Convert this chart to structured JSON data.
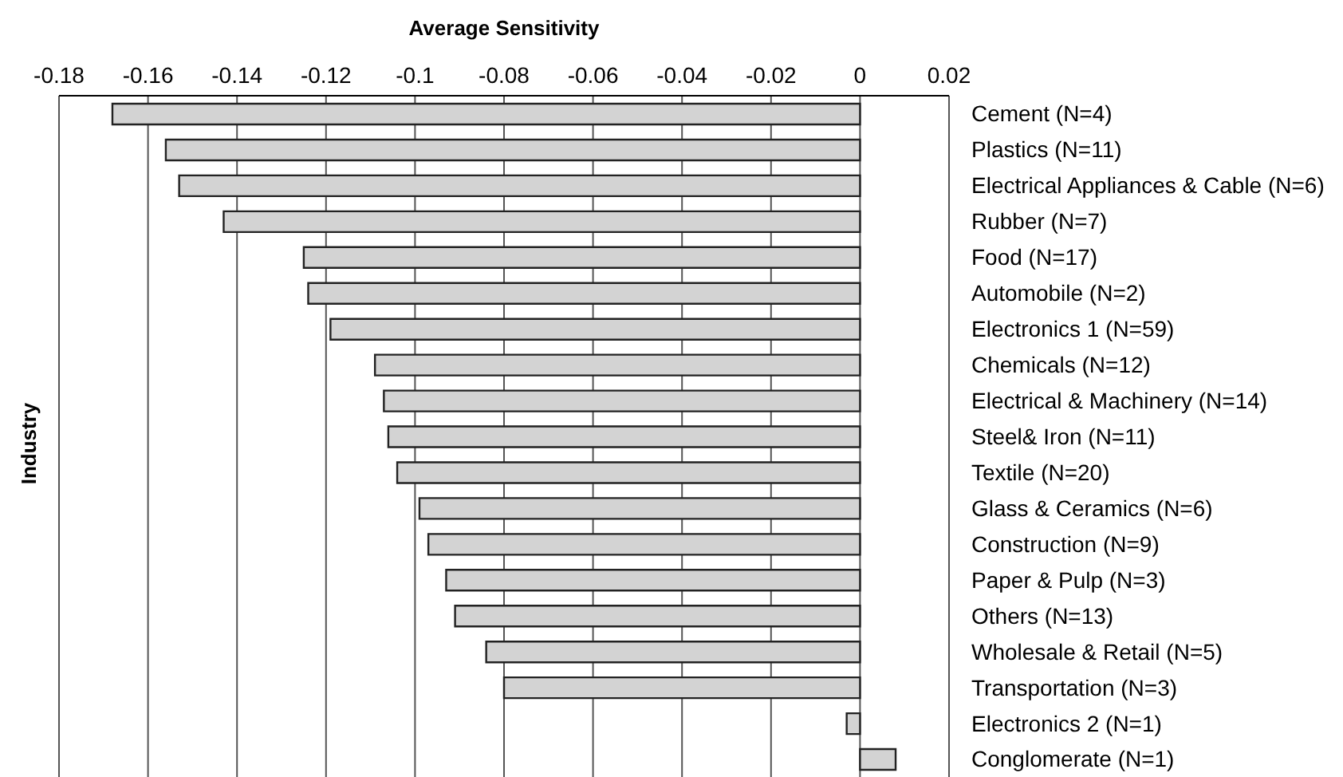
{
  "chart_data": {
    "type": "bar",
    "orientation": "horizontal",
    "xlabel": "Average Sensitivity",
    "ylabel": "Industry",
    "categories": [
      "Cement (N=4)",
      "Plastics (N=11)",
      "Electrical Appliances & Cable (N=6)",
      "Rubber (N=7)",
      "Food (N=17)",
      "Automobile (N=2)",
      "Electronics 1 (N=59)",
      "Chemicals (N=12)",
      "Electrical & Machinery (N=14)",
      "Steel& Iron (N=11)",
      "Textile (N=20)",
      "Glass & Ceramics (N=6)",
      "Construction (N=9)",
      "Paper & Pulp (N=3)",
      "Others (N=13)",
      "Wholesale & Retail (N=5)",
      "Transportation (N=3)",
      "Electronics 2 (N=1)",
      "Conglomerate (N=1)"
    ],
    "values": [
      -0.168,
      -0.156,
      -0.153,
      -0.143,
      -0.125,
      -0.124,
      -0.119,
      -0.109,
      -0.107,
      -0.106,
      -0.104,
      -0.099,
      -0.097,
      -0.093,
      -0.091,
      -0.084,
      -0.08,
      -0.003,
      0.008
    ],
    "color": "#d3d3d3",
    "xlim": [
      -0.18,
      0.02
    ],
    "xticks": [
      -0.18,
      -0.16,
      -0.14,
      -0.12,
      -0.1,
      -0.08,
      -0.06,
      -0.04,
      -0.02,
      0,
      0.02
    ],
    "grid": "x",
    "legend": false
  }
}
